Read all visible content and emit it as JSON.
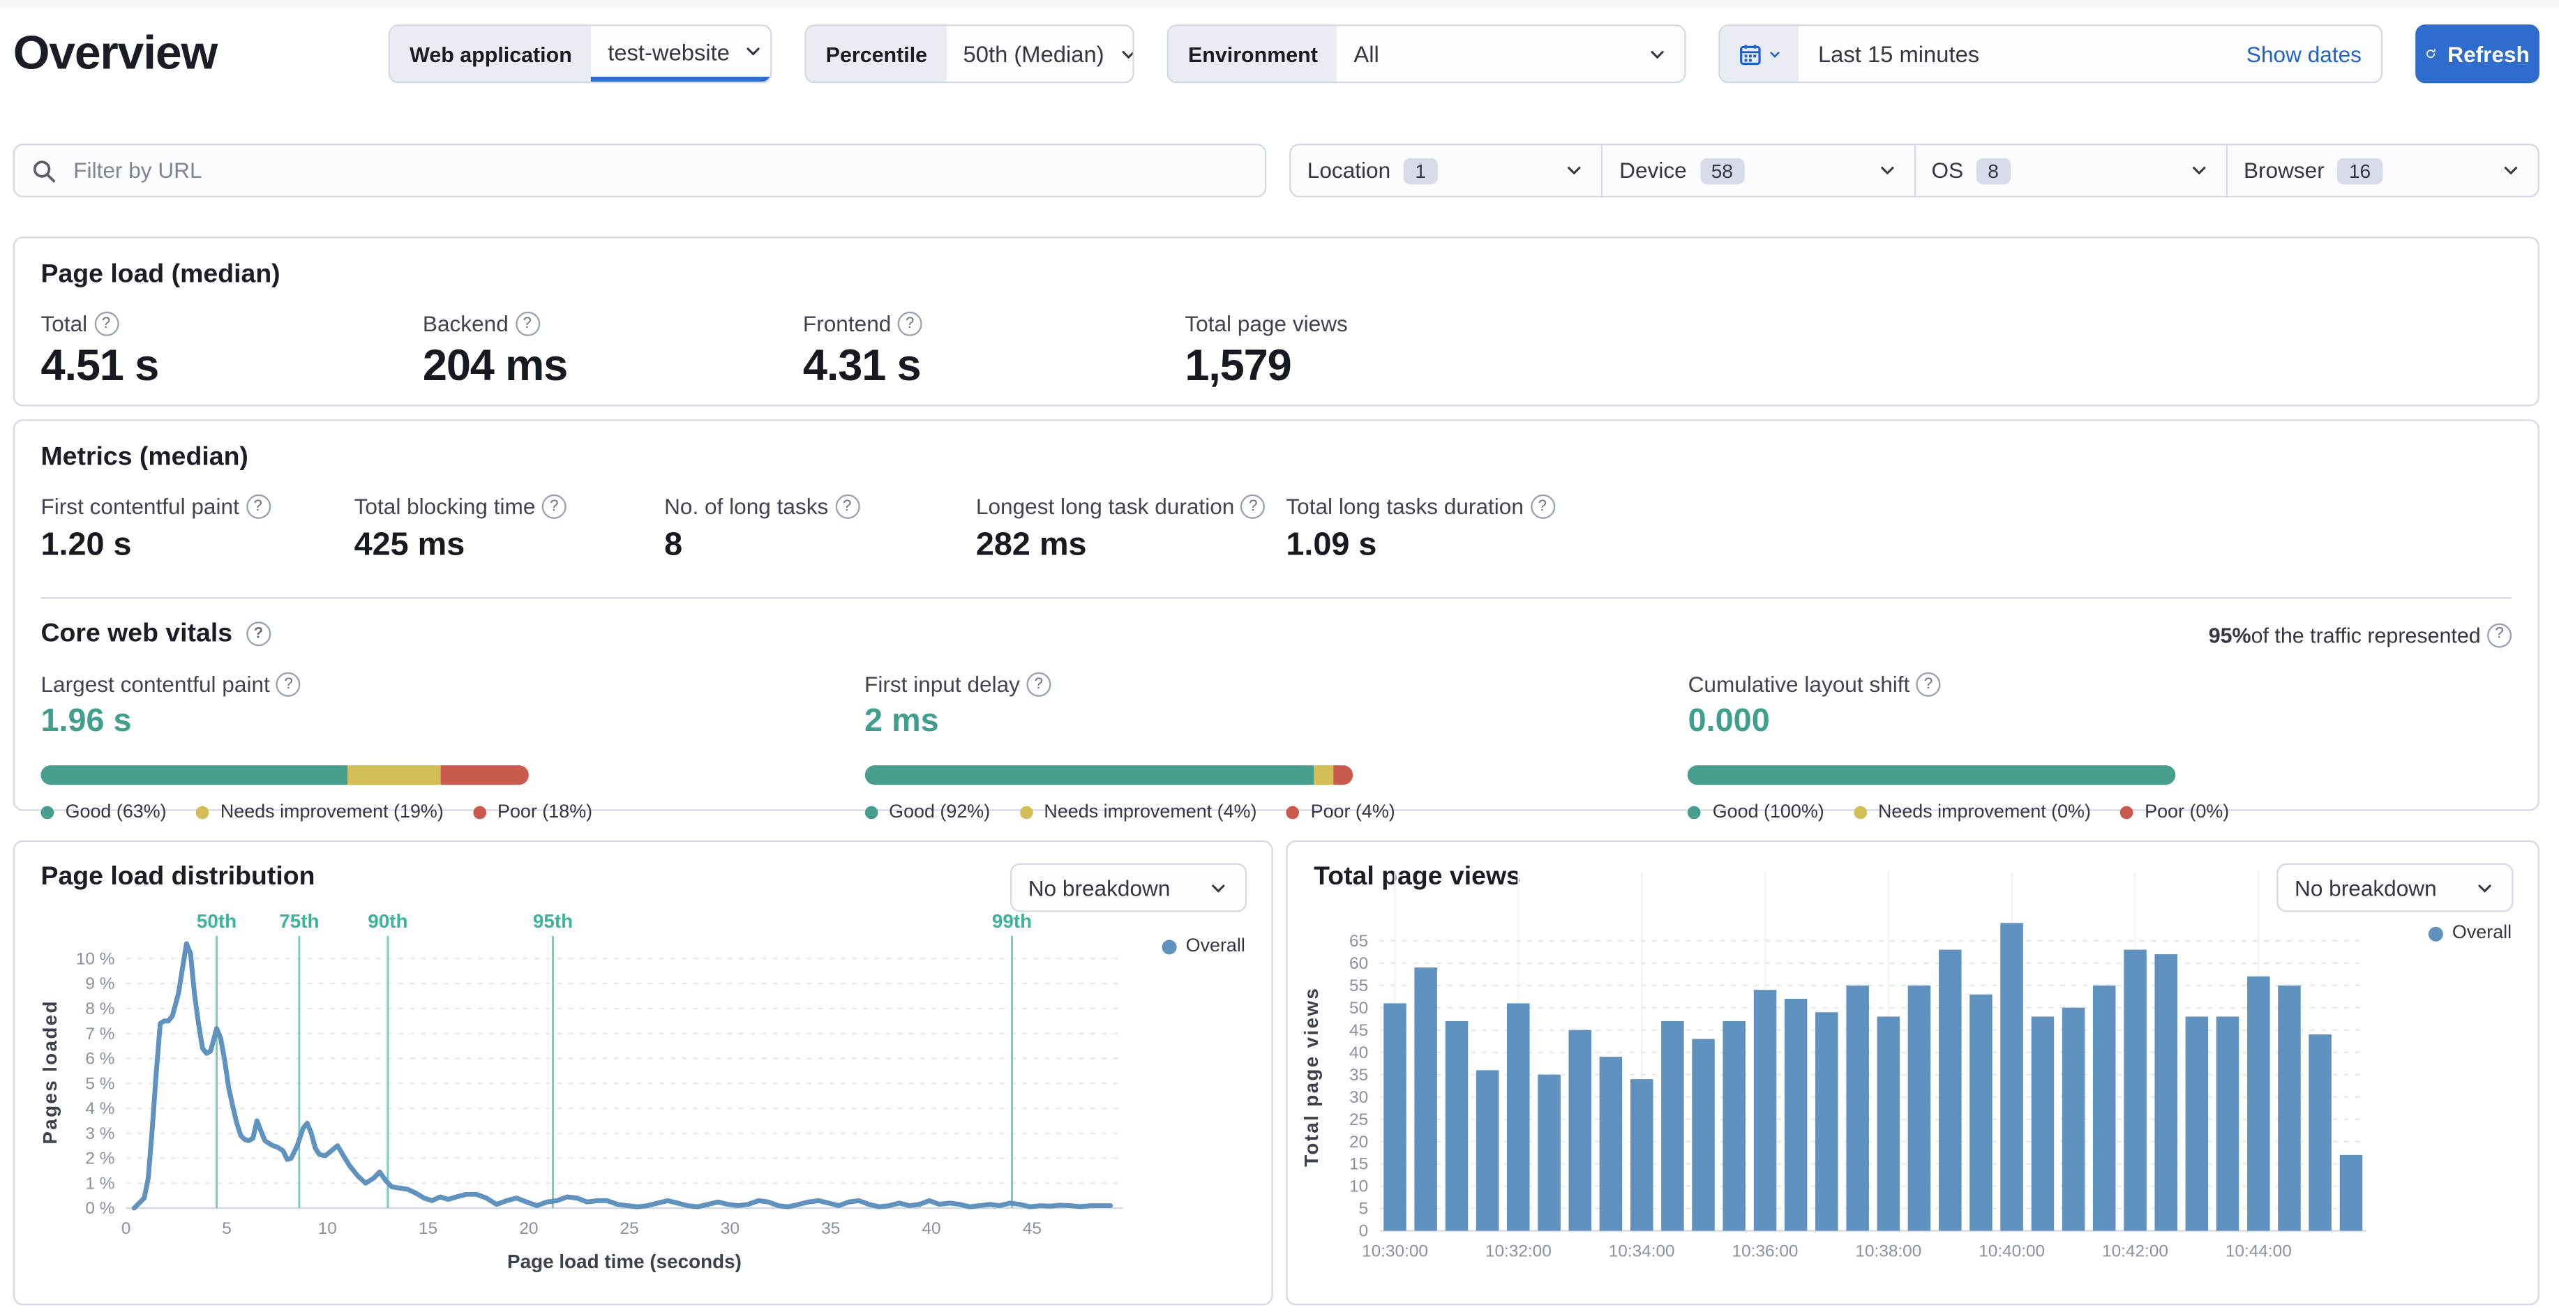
{
  "header": {
    "title": "Overview",
    "controls": {
      "web_application": {
        "label": "Web application",
        "value": "test-website"
      },
      "percentile": {
        "label": "Percentile",
        "value": "50th (Median)"
      },
      "environment": {
        "label": "Environment",
        "value": "All"
      },
      "date_picker": {
        "value": "Last 15 minutes",
        "show_dates_label": "Show dates"
      },
      "refresh_label": "Refresh"
    }
  },
  "filters": {
    "url_filter_placeholder": "Filter by URL",
    "dropdowns": [
      {
        "label": "Location",
        "count": "1"
      },
      {
        "label": "Device",
        "count": "58"
      },
      {
        "label": "OS",
        "count": "8"
      },
      {
        "label": "Browser",
        "count": "16"
      }
    ]
  },
  "page_load": {
    "title": "Page load (median)",
    "stats": [
      {
        "label": "Total",
        "value": "4.51 s"
      },
      {
        "label": "Backend",
        "value": "204 ms"
      },
      {
        "label": "Frontend",
        "value": "4.31 s"
      },
      {
        "label": "Total page views",
        "value": "1,579"
      }
    ]
  },
  "metrics": {
    "title": "Metrics (median)",
    "stats": [
      {
        "label": "First contentful paint",
        "value": "1.20 s"
      },
      {
        "label": "Total blocking time",
        "value": "425 ms"
      },
      {
        "label": "No. of long tasks",
        "value": "8"
      },
      {
        "label": "Longest long task duration",
        "value": "282 ms"
      },
      {
        "label": "Total long tasks duration",
        "value": "1.09 s"
      }
    ]
  },
  "core_web_vitals": {
    "title": "Core web vitals",
    "traffic_bold": "95%",
    "traffic_rest": " of the traffic represented",
    "vitals": [
      {
        "label": "Largest contentful paint",
        "value": "1.96 s",
        "segments": [
          63,
          19,
          18
        ],
        "legend": [
          "Good (63%)",
          "Needs improvement (19%)",
          "Poor (18%)"
        ]
      },
      {
        "label": "First input delay",
        "value": "2 ms",
        "segments": [
          92,
          4,
          4
        ],
        "legend": [
          "Good (92%)",
          "Needs improvement (4%)",
          "Poor (4%)"
        ]
      },
      {
        "label": "Cumulative layout shift",
        "value": "0.000",
        "segments": [
          100,
          0,
          0
        ],
        "legend": [
          "Good (100%)",
          "Needs improvement (0%)",
          "Poor (0%)"
        ]
      }
    ]
  },
  "charts": {
    "breakdown_label": "No breakdown"
  },
  "chart_data": [
    {
      "type": "line",
      "title": "Page load distribution",
      "xlabel": "Page load time (seconds)",
      "ylabel": "Pages loaded",
      "legend": [
        "Overall"
      ],
      "legend_position": "top-right",
      "grid": true,
      "xlim": [
        0,
        49.5
      ],
      "ylim": [
        0,
        11
      ],
      "x_ticks": [
        0,
        5,
        10,
        15,
        20,
        25,
        30,
        35,
        40,
        45
      ],
      "y_ticks": [
        0,
        1,
        2,
        3,
        4,
        5,
        6,
        7,
        8,
        9,
        10
      ],
      "y_tick_suffix": " %",
      "percentile_markers": [
        {
          "label": "50th",
          "x": 4.5
        },
        {
          "label": "75th",
          "x": 8.6
        },
        {
          "label": "90th",
          "x": 13.0
        },
        {
          "label": "95th",
          "x": 21.2
        },
        {
          "label": "99th",
          "x": 44.0
        }
      ],
      "points": [
        [
          0.4,
          0
        ],
        [
          0.9,
          0.4
        ],
        [
          1.1,
          1.2
        ],
        [
          1.3,
          3.2
        ],
        [
          1.5,
          5.4
        ],
        [
          1.7,
          7.4
        ],
        [
          1.9,
          7.5
        ],
        [
          2.1,
          7.5
        ],
        [
          2.3,
          7.7
        ],
        [
          2.6,
          8.6
        ],
        [
          2.8,
          9.6
        ],
        [
          3.0,
          10.6
        ],
        [
          3.2,
          10.2
        ],
        [
          3.4,
          8.6
        ],
        [
          3.6,
          7.4
        ],
        [
          3.8,
          6.4
        ],
        [
          4.0,
          6.2
        ],
        [
          4.2,
          6.3
        ],
        [
          4.5,
          7.2
        ],
        [
          4.7,
          6.8
        ],
        [
          4.9,
          5.9
        ],
        [
          5.1,
          4.8
        ],
        [
          5.3,
          4.1
        ],
        [
          5.5,
          3.4
        ],
        [
          5.7,
          2.9
        ],
        [
          5.9,
          2.75
        ],
        [
          6.1,
          2.7
        ],
        [
          6.3,
          2.8
        ],
        [
          6.5,
          3.5
        ],
        [
          6.7,
          3.1
        ],
        [
          6.9,
          2.7
        ],
        [
          7.1,
          2.6
        ],
        [
          7.3,
          2.5
        ],
        [
          7.5,
          2.45
        ],
        [
          7.8,
          2.3
        ],
        [
          8.0,
          1.95
        ],
        [
          8.2,
          2.0
        ],
        [
          8.5,
          2.5
        ],
        [
          8.8,
          3.2
        ],
        [
          9.0,
          3.4
        ],
        [
          9.2,
          3.0
        ],
        [
          9.4,
          2.4
        ],
        [
          9.6,
          2.15
        ],
        [
          9.9,
          2.1
        ],
        [
          10.2,
          2.3
        ],
        [
          10.5,
          2.5
        ],
        [
          10.8,
          2.1
        ],
        [
          11.1,
          1.7
        ],
        [
          11.5,
          1.3
        ],
        [
          11.9,
          1.0
        ],
        [
          12.3,
          1.2
        ],
        [
          12.6,
          1.45
        ],
        [
          12.9,
          1.1
        ],
        [
          13.2,
          0.85
        ],
        [
          13.6,
          0.8
        ],
        [
          14.0,
          0.75
        ],
        [
          14.4,
          0.6
        ],
        [
          14.8,
          0.4
        ],
        [
          15.2,
          0.3
        ],
        [
          15.6,
          0.45
        ],
        [
          16.0,
          0.35
        ],
        [
          16.4,
          0.45
        ],
        [
          16.9,
          0.55
        ],
        [
          17.4,
          0.55
        ],
        [
          17.9,
          0.4
        ],
        [
          18.4,
          0.15
        ],
        [
          18.9,
          0.3
        ],
        [
          19.4,
          0.4
        ],
        [
          19.9,
          0.25
        ],
        [
          20.4,
          0.1
        ],
        [
          20.9,
          0.25
        ],
        [
          21.4,
          0.3
        ],
        [
          21.9,
          0.45
        ],
        [
          22.4,
          0.4
        ],
        [
          22.9,
          0.25
        ],
        [
          23.4,
          0.3
        ],
        [
          23.9,
          0.3
        ],
        [
          24.4,
          0.15
        ],
        [
          24.9,
          0.1
        ],
        [
          25.4,
          0.05
        ],
        [
          25.9,
          0.1
        ],
        [
          26.4,
          0.2
        ],
        [
          26.9,
          0.3
        ],
        [
          27.4,
          0.2
        ],
        [
          27.9,
          0.1
        ],
        [
          28.4,
          0.05
        ],
        [
          28.9,
          0.15
        ],
        [
          29.4,
          0.25
        ],
        [
          29.9,
          0.15
        ],
        [
          30.4,
          0.1
        ],
        [
          30.9,
          0.15
        ],
        [
          31.4,
          0.3
        ],
        [
          31.9,
          0.25
        ],
        [
          32.4,
          0.1
        ],
        [
          32.9,
          0.05
        ],
        [
          33.4,
          0.15
        ],
        [
          33.9,
          0.25
        ],
        [
          34.4,
          0.3
        ],
        [
          34.9,
          0.2
        ],
        [
          35.4,
          0.1
        ],
        [
          35.9,
          0.25
        ],
        [
          36.4,
          0.3
        ],
        [
          36.9,
          0.15
        ],
        [
          37.4,
          0.05
        ],
        [
          37.9,
          0.1
        ],
        [
          38.4,
          0.2
        ],
        [
          38.9,
          0.1
        ],
        [
          39.4,
          0.15
        ],
        [
          39.9,
          0.3
        ],
        [
          40.4,
          0.15
        ],
        [
          40.9,
          0.2
        ],
        [
          41.4,
          0.15
        ],
        [
          41.9,
          0.05
        ],
        [
          42.4,
          0.1
        ],
        [
          42.9,
          0.15
        ],
        [
          43.4,
          0.1
        ],
        [
          43.9,
          0.2
        ],
        [
          44.4,
          0.15
        ],
        [
          44.9,
          0.05
        ],
        [
          45.4,
          0.1
        ],
        [
          45.9,
          0.08
        ],
        [
          46.4,
          0.12
        ],
        [
          46.9,
          0.1
        ],
        [
          47.4,
          0.06
        ],
        [
          47.9,
          0.1
        ],
        [
          48.4,
          0.1
        ],
        [
          48.9,
          0.1
        ]
      ]
    },
    {
      "type": "bar",
      "title": "Total page views",
      "ylabel": "Total page views",
      "legend": [
        "Overall"
      ],
      "legend_position": "top-right",
      "grid": true,
      "ylim": [
        0,
        69
      ],
      "y_ticks": [
        0,
        5,
        10,
        15,
        20,
        25,
        30,
        35,
        40,
        45,
        50,
        55,
        60,
        65
      ],
      "interval_seconds": 30,
      "x_tick_labels": [
        "10:30:00",
        "10:32:00",
        "10:34:00",
        "10:36:00",
        "10:38:00",
        "10:40:00",
        "10:42:00",
        "10:44:00"
      ],
      "values": [
        51,
        59,
        47,
        36,
        51,
        35,
        45,
        39,
        34,
        47,
        43,
        47,
        54,
        52,
        49,
        55,
        48,
        55,
        63,
        53,
        69,
        48,
        50,
        55,
        63,
        62,
        48,
        48,
        57,
        55,
        44,
        17
      ]
    }
  ],
  "colors": {
    "accent_blue": "#2e6ccd",
    "link_blue": "#2062c9",
    "chart_blue": "#6092c0",
    "good_green": "#489e8d",
    "needs_improvement_yellow": "#d2bd56",
    "poor_red": "#cb5a4e",
    "percentile_teal": "#3bb39d"
  }
}
